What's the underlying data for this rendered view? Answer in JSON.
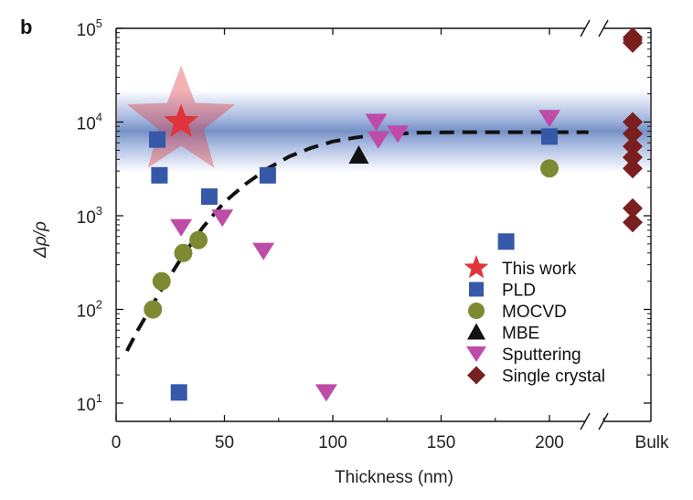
{
  "chart_data": {
    "type": "scatter",
    "panel_label": "b",
    "title": "",
    "xlabel": "Thickness (nm)",
    "ylabel": "Δρ/ρ",
    "xlim": [
      0,
      235
    ],
    "ylim_log10": [
      0.7,
      5
    ],
    "yscale": "log",
    "x_ticks": [
      0,
      50,
      100,
      150,
      200
    ],
    "x_tick_labels": [
      "0",
      "50",
      "100",
      "150",
      "200"
    ],
    "x_break_label": "Bulk",
    "y_ticks": [
      {
        "base": "10",
        "exp": "1",
        "value": 10
      },
      {
        "base": "10",
        "exp": "2",
        "value": 100
      },
      {
        "base": "10",
        "exp": "3",
        "value": 1000
      },
      {
        "base": "10",
        "exp": "4",
        "value": 10000
      },
      {
        "base": "10",
        "exp": "5",
        "value": 100000
      }
    ],
    "legend_position": "bottom-right",
    "highlight_band": {
      "center": 8000,
      "color": "#4a6cb3"
    },
    "series": [
      {
        "name": "This work",
        "marker": "star",
        "color": "#e0343a",
        "x": [
          30
        ],
        "y": [
          10000
        ]
      },
      {
        "name": "PLD",
        "marker": "square",
        "color": "#3558a8",
        "x": [
          19,
          20,
          29,
          43,
          70,
          180,
          200
        ],
        "y": [
          6500,
          2700,
          13,
          1600,
          2700,
          530,
          7000
        ]
      },
      {
        "name": "MOCVD",
        "marker": "circle",
        "color": "#7e8a32",
        "x": [
          17,
          21,
          31,
          38,
          200
        ],
        "y": [
          100,
          200,
          400,
          550,
          3200
        ]
      },
      {
        "name": "MBE",
        "marker": "triangle-up",
        "color": "#111111",
        "x": [
          112
        ],
        "y": [
          4400
        ]
      },
      {
        "name": "Sputtering",
        "marker": "triangle-down",
        "color": "#bf4ba8",
        "x": [
          30,
          49,
          68,
          97,
          120,
          121,
          130,
          200
        ],
        "y": [
          750,
          950,
          420,
          13,
          10000,
          6500,
          7500,
          11000
        ]
      },
      {
        "name": "Single crystal",
        "marker": "diamond",
        "color": "#7a1f1f",
        "x": [
          "Bulk",
          "Bulk",
          "Bulk",
          "Bulk",
          "Bulk",
          "Bulk",
          "Bulk",
          "Bulk",
          "Bulk",
          "Bulk"
        ],
        "y": [
          80000,
          70000,
          10000,
          7500,
          5500,
          4200,
          3200,
          1200,
          850,
          75000
        ]
      }
    ],
    "fit_curve": {
      "style": "dashed",
      "color": "#111111",
      "x": [
        5,
        10,
        20,
        30,
        40,
        50,
        60,
        70,
        80,
        90,
        100,
        110,
        120,
        140,
        160,
        180,
        200,
        218
      ],
      "y": [
        36,
        60,
        150,
        350,
        750,
        1400,
        2200,
        3200,
        4300,
        5300,
        6200,
        6800,
        7300,
        7700,
        7800,
        7800,
        7800,
        7800
      ]
    }
  }
}
